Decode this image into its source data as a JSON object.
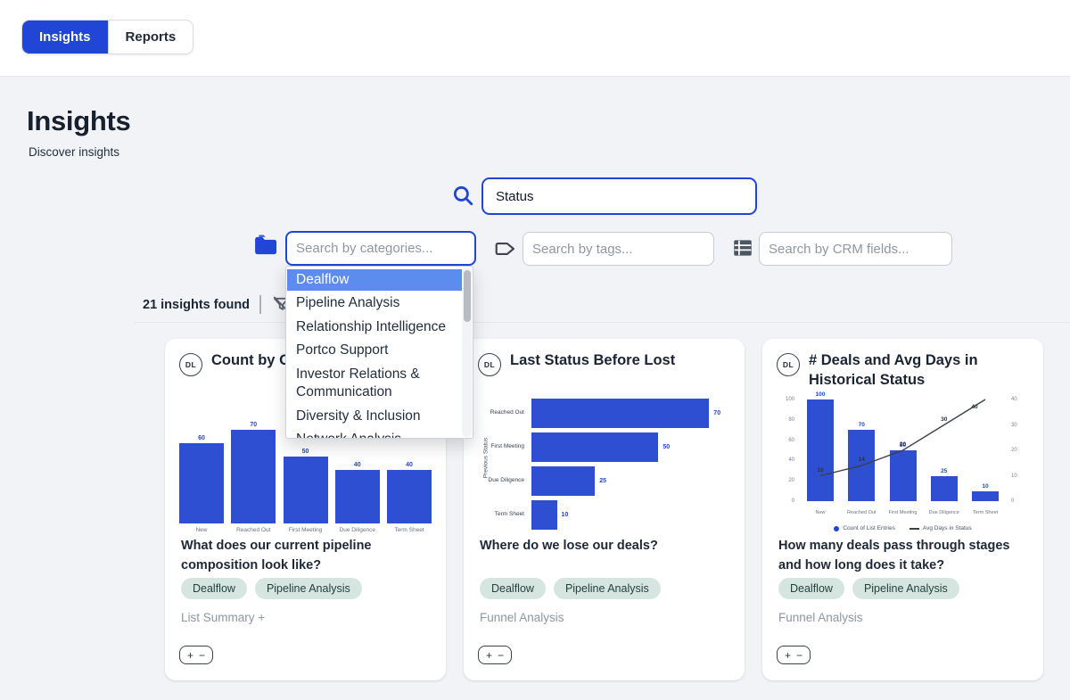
{
  "colors": {
    "accent": "#2145d4",
    "bar": "#2e4fd2",
    "dropdown_highlight": "#5b8cee",
    "page_bg": "#f2f3f6",
    "tag_bg": "#d6e5df",
    "tag_text": "#21413a",
    "muted_text": "#8e96a0",
    "heading_text": "#16202e",
    "line": "#3a4149"
  },
  "topbar": {
    "tabs": [
      {
        "label": "Insights",
        "active": true
      },
      {
        "label": "Reports",
        "active": false
      }
    ]
  },
  "header": {
    "title": "Insights",
    "subtitle": "Discover insights"
  },
  "search": {
    "value": "Status"
  },
  "filters": {
    "categories_placeholder": "Search by categories...",
    "tags_placeholder": "Search by tags...",
    "crm_placeholder": "Search by CRM fields..."
  },
  "dropdown": {
    "items": [
      {
        "label": "Dealflow",
        "highlighted": true
      },
      {
        "label": "Pipeline Analysis",
        "highlighted": false
      },
      {
        "label": "Relationship Intelligence",
        "highlighted": false
      },
      {
        "label": "Portco Support",
        "highlighted": false
      },
      {
        "label": "Investor Relations & Communication",
        "highlighted": false
      },
      {
        "label": "Diversity & Inclusion",
        "highlighted": false
      },
      {
        "label": "Network Analysis",
        "highlighted": false
      }
    ]
  },
  "results": {
    "count_text": "21 insights found"
  },
  "controls": {
    "zoom_in": "+",
    "zoom_out": "−"
  },
  "cards": [
    {
      "badge": "DL",
      "title": "Count by Op",
      "question": "What does our current pipeline composition look like?",
      "tags": [
        "Dealflow",
        "Pipeline Analysis"
      ],
      "meta": "List Summary +"
    },
    {
      "badge": "DL",
      "title": "Last Status Before Lost",
      "question": "Where do we lose our deals?",
      "tags": [
        "Dealflow",
        "Pipeline Analysis"
      ],
      "meta": "Funnel Analysis"
    },
    {
      "badge": "DL",
      "title": "# Deals and Avg Days in Historical Status",
      "question": "How many deals pass through stages and how long does it take?",
      "tags": [
        "Dealflow",
        "Pipeline Analysis"
      ],
      "meta": "Funnel Analysis"
    }
  ],
  "chart_data": [
    {
      "type": "bar",
      "title": "Count by Op",
      "categories": [
        "New",
        "Reached Out",
        "First Meeting",
        "Due Diligence",
        "Term Sheet"
      ],
      "values": [
        60,
        70,
        50,
        40,
        40
      ],
      "xlabel": "",
      "ylabel": "",
      "ylim": [
        0,
        70
      ],
      "grid": false,
      "datalabels": true
    },
    {
      "type": "bar",
      "orientation": "horizontal",
      "title": "Last Status Before Lost",
      "categories": [
        "Reached Out",
        "First Meeting",
        "Due Diligence",
        "Term Sheet"
      ],
      "values": [
        70,
        50,
        25,
        10
      ],
      "xlabel": "",
      "ylabel": "Previous Status",
      "xlim": [
        0,
        72
      ],
      "grid": false,
      "datalabels": true
    },
    {
      "type": "bar",
      "subtype": "bar+line",
      "title": "# Deals and Avg Days in Historical Status",
      "categories": [
        "New",
        "Reached Out",
        "First Meeting",
        "Due Diligence",
        "Term Sheet"
      ],
      "series": [
        {
          "name": "Count of List Entries",
          "type": "bar",
          "axis": "left",
          "values": [
            100,
            70,
            50,
            25,
            10
          ]
        },
        {
          "name": "Avg Days in Status",
          "type": "line",
          "axis": "right",
          "values": [
            10,
            14,
            20,
            30,
            40
          ]
        }
      ],
      "left_ticks": [
        0,
        20,
        40,
        60,
        80,
        100
      ],
      "right_ticks": [
        0,
        10,
        20,
        30,
        40
      ],
      "left_lim": [
        0,
        100
      ],
      "right_lim": [
        0,
        40
      ],
      "legend_position": "bottom",
      "grid": false
    }
  ]
}
